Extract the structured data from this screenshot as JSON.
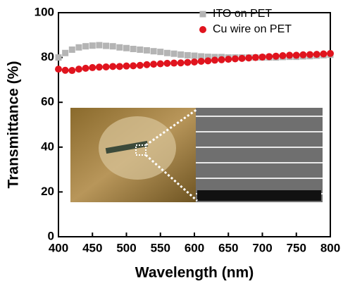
{
  "chart_data": {
    "type": "scatter",
    "x_label": "Wavelength (nm)",
    "y_label": "Transmittance (%)",
    "xlim": [
      400,
      800
    ],
    "ylim": [
      0,
      100
    ],
    "xticks": [
      400,
      450,
      500,
      550,
      600,
      650,
      700,
      750,
      800
    ],
    "yticks": [
      0,
      20,
      40,
      60,
      80,
      100
    ],
    "legend": "upper right",
    "x": [
      400,
      410,
      420,
      430,
      440,
      450,
      460,
      470,
      480,
      490,
      500,
      510,
      520,
      530,
      540,
      550,
      560,
      570,
      580,
      590,
      600,
      610,
      620,
      630,
      640,
      650,
      660,
      670,
      680,
      690,
      700,
      710,
      720,
      730,
      740,
      750,
      760,
      770,
      780,
      790,
      800
    ],
    "series": [
      {
        "name": "ITO on PET",
        "color": "#b4b4b4",
        "marker": "square",
        "values": [
          80,
          82,
          83.5,
          84.5,
          85,
          85.3,
          85.5,
          85.2,
          85,
          84.5,
          84.2,
          83.8,
          83.5,
          83.2,
          82.8,
          82.5,
          82,
          81.7,
          81.3,
          81,
          80.8,
          80.5,
          80.3,
          80.2,
          80.2,
          80,
          80,
          80,
          80,
          80,
          80,
          80,
          80,
          80.2,
          80.3,
          80.3,
          80.5,
          80.6,
          80.8,
          81,
          81.2
        ]
      },
      {
        "name": "Cu wire on PET",
        "color": "#e0141e",
        "marker": "circle",
        "values": [
          74.8,
          74.3,
          74.2,
          74.8,
          75.2,
          75.5,
          75.7,
          75.8,
          76,
          76,
          76.2,
          76.3,
          76.5,
          76.8,
          77,
          77.2,
          77.4,
          77.5,
          77.6,
          77.8,
          78,
          78.3,
          78.5,
          78.8,
          79,
          79.2,
          79.4,
          79.6,
          79.8,
          80,
          80.2,
          80.4,
          80.6,
          80.8,
          81,
          81,
          81.2,
          81.3,
          81.4,
          81.6,
          81.8
        ]
      }
    ]
  }
}
